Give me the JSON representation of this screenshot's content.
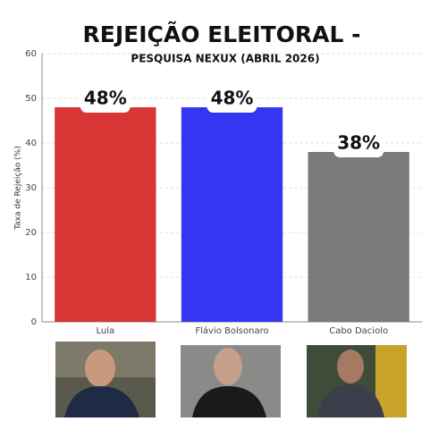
{
  "chart_data": {
    "type": "bar",
    "title": "REJEIÇÃO ELEITORAL -",
    "subtitle": "PESQUISA NEXUX (ABRIL 2026)",
    "y_label": "Taxa de Rejeição (%)",
    "categories": [
      "Lula",
      "Flávio Bolsonaro",
      "Cabo Daciolo"
    ],
    "values": [
      48,
      48,
      38
    ],
    "value_labels": [
      "48%",
      "48%",
      "38%"
    ],
    "colors": [
      "#d93535",
      "#3535f2",
      "#7a7a7a"
    ],
    "ylim": [
      0,
      60
    ],
    "yticks": [
      0,
      10,
      20,
      30,
      40,
      50,
      60
    ],
    "grid": true
  }
}
